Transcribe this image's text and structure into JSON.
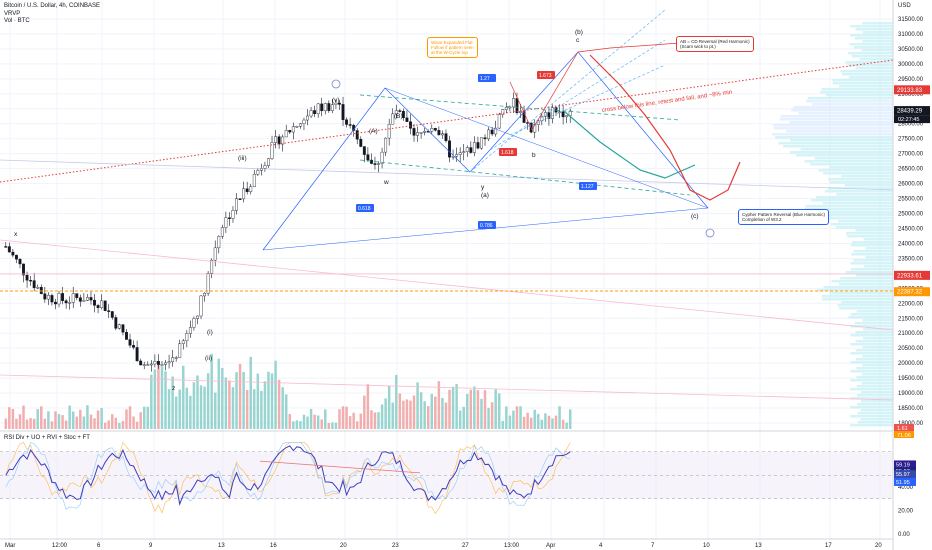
{
  "header": {
    "symbol": "Bitcoin / U.S. Dollar, 4h, COINBASE",
    "indicator1": "VRVP",
    "indicator2": "Vol · BTC",
    "rsi_title": "RSI Div + UO + RVI + Stoc + FT"
  },
  "currency": "USD",
  "price_scale": [
    "31500.00",
    "31000.00",
    "30500.00",
    "30000.00",
    "29500.00",
    "29000.00",
    "28500.00",
    "28000.00",
    "27500.00",
    "27000.00",
    "26500.00",
    "26000.00",
    "25500.00",
    "25000.00",
    "24500.00",
    "24000.00",
    "23500.00",
    "23000.00",
    "22500.00",
    "22000.00",
    "21500.00",
    "21000.00",
    "20500.00",
    "20000.00",
    "19500.00",
    "19000.00",
    "18500.00",
    "18000.00"
  ],
  "rsi_scale": [
    "60.00",
    "40.00",
    "20.00",
    "0.00"
  ],
  "price_tags": {
    "top_red": "29133.83",
    "last_price": "28439.29",
    "countdown": "02:27:45",
    "red_mid": "22933.61",
    "orange": "22387.32"
  },
  "rsi_tags": [
    "59.19",
    "55.97",
    "55.97",
    "51.95"
  ],
  "vol_tags": [
    "1.61",
    "71.06"
  ],
  "time_axis": [
    "Mar",
    "12:00",
    "6",
    "9",
    "13",
    "16",
    "20",
    "23",
    "27",
    "13:00",
    "Apr",
    "4",
    "7",
    "10",
    "13",
    "17",
    "20"
  ],
  "wave_labels": [
    "(i)",
    "(ii)",
    "(iii)",
    "(v)",
    "(a)",
    "(b)",
    "(c)",
    "x",
    "y",
    "w",
    "z",
    "b",
    "c",
    "(A)",
    "(B)",
    "ⓘ",
    "ⓘⅱ"
  ],
  "ratio_tags": [
    "1.27",
    "1.618",
    "0.618",
    "0.786",
    "1.127",
    "1.673"
  ],
  "annotations": {
    "red_note_1": "AB = CD Reversal (Red Harmonic)",
    "red_note_2": "(Scam wick to pt.)",
    "blue_note_1": "Cypher Pattern Reversal (Blue Harmonic)",
    "blue_note_2": "Completion of W3.2",
    "orange_note": "Wave Expanded Flat\nFollow if pattern seen\nat the W-Cycle top",
    "red_line_text": "cross below this line, retest and fail, and ~8% min",
    "wave_c_label": "(c)"
  },
  "colors": {
    "up": "#26a69a",
    "down": "#ef5350",
    "blue": "#2962ff",
    "orange": "#ff9800",
    "red_line": "#e53935",
    "pink": "#f06292",
    "rsi": "#3f3fbf",
    "rsi_ma": "#e57373"
  },
  "chart_data": {
    "type": "candlestick",
    "ylim": [
      18000,
      31700
    ],
    "price_seed_closes": [
      23900,
      23000,
      22250,
      22100,
      22200,
      22000,
      21000,
      20000,
      19800,
      20500,
      22000,
      24500,
      25500,
      26500,
      27500,
      28000,
      28500,
      28700,
      27500,
      26500,
      28500,
      27500,
      28000,
      26800,
      27200,
      27800,
      28800,
      27800,
      28400,
      28439
    ],
    "volume_relative": "high near 9-13 Mar, declining toward Apr",
    "rsi_last": 51.95
  }
}
